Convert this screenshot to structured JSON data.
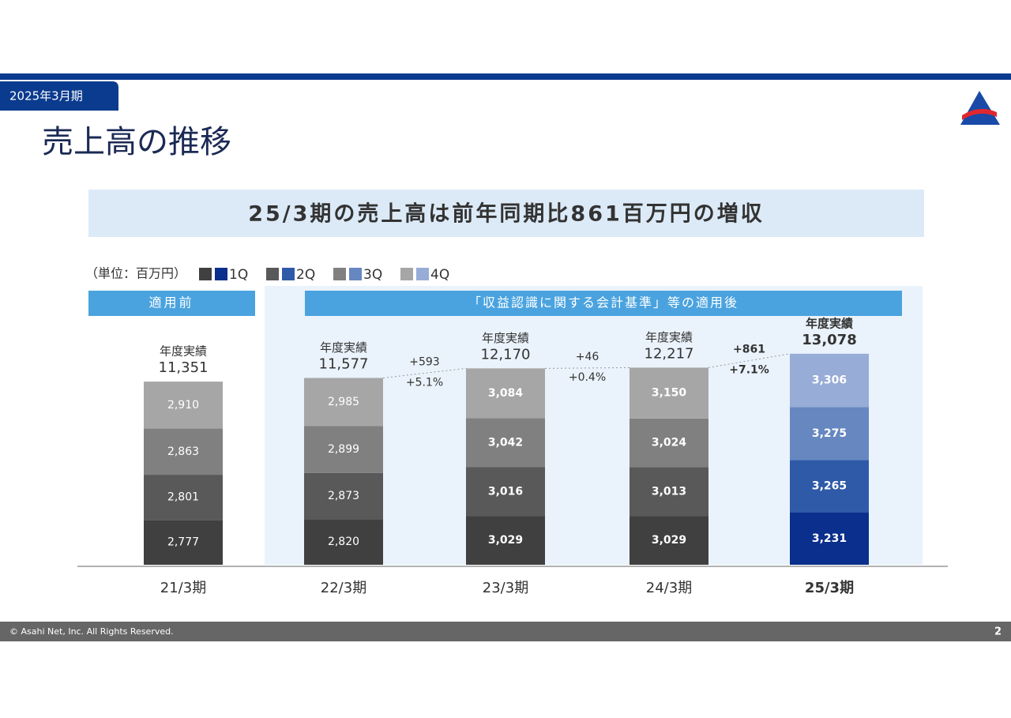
{
  "header": {
    "period_tag": "2025年3月期",
    "title": "売上高の推移"
  },
  "headline": "25/3期の売上高は前年同期比861百万円の増収",
  "chart_data": {
    "type": "stacked-bar",
    "unit": "（単位：百万円）",
    "sections": [
      "適用前",
      "「収益認識に関する会計基準」等の適用後"
    ],
    "categories": [
      "21/3期",
      "22/3期",
      "23/3期",
      "24/3期",
      "25/3期"
    ],
    "highlighted": [
      false,
      false,
      false,
      false,
      true
    ],
    "series": [
      {
        "name": "1Q",
        "color": "#404040",
        "highlight_color": "#0a2f8c",
        "values": [
          2777,
          2820,
          3029,
          3029,
          3231
        ],
        "value_labels": [
          "2,777",
          "2,820",
          "3,029",
          "3,029",
          "3,231"
        ]
      },
      {
        "name": "2Q",
        "color": "#595959",
        "highlight_color": "#2f5aa8",
        "values": [
          2801,
          2873,
          3016,
          3013,
          3265
        ],
        "value_labels": [
          "2,801",
          "2,873",
          "3,016",
          "3,013",
          "3,265"
        ]
      },
      {
        "name": "3Q",
        "color": "#808080",
        "highlight_color": "#6687c0",
        "values": [
          2863,
          2899,
          3042,
          3024,
          3275
        ],
        "value_labels": [
          "2,863",
          "2,899",
          "3,042",
          "3,024",
          "3,275"
        ]
      },
      {
        "name": "4Q",
        "color": "#a6a6a6",
        "highlight_color": "#97acd6",
        "values": [
          2910,
          2985,
          3084,
          3150,
          3306
        ],
        "value_labels": [
          "2,910",
          "2,985",
          "3,084",
          "3,150",
          "3,306"
        ]
      }
    ],
    "total_caption": "年度実績",
    "totals": {
      "values": [
        11351,
        11577,
        12170,
        12217,
        13078
      ],
      "value_labels": [
        "11,351",
        "11,577",
        "12,170",
        "12,217",
        "13,078"
      ]
    },
    "changes": {
      "values": [
        593,
        46,
        861
      ],
      "value_labels": [
        "+593",
        "+46",
        "+861"
      ]
    },
    "change_rates": {
      "values": [
        5.1,
        0.4,
        7.1
      ],
      "value_labels": [
        "+5.1%",
        "+0.4%",
        "+7.1%"
      ]
    },
    "ylim": [
      0,
      14000
    ]
  },
  "footer": {
    "copyright": "© Asahi Net, Inc. All Rights Reserved.",
    "page": "2"
  }
}
